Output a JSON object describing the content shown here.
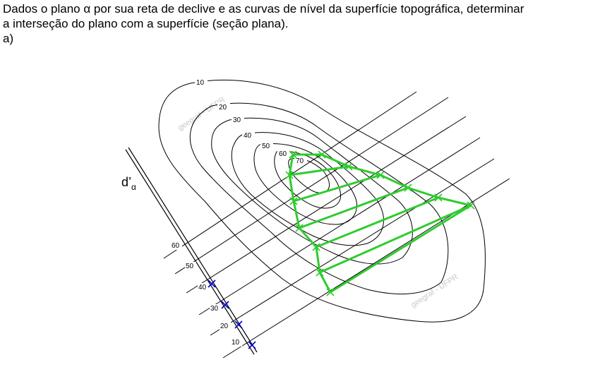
{
  "statement": {
    "line1": "Dados o plano α por sua reta de declive e as curvas de nível da superfície topográfica, determinar",
    "line2": "a interseção do plano com a superfície (seção plana)."
  },
  "item_label": "a)",
  "slope_line": {
    "label": "d’",
    "subscript": "α",
    "graduations": [
      "60",
      "50",
      "40",
      "30",
      "20",
      "10"
    ]
  },
  "contours": [
    "10",
    "20",
    "30",
    "40",
    "50",
    "60",
    "70"
  ],
  "watermark": "geegraf - UFPR",
  "colors": {
    "section": "#2ecc2e",
    "marks": "#0000cc",
    "lines": "#000000",
    "watermark": "#c8c8c8"
  }
}
